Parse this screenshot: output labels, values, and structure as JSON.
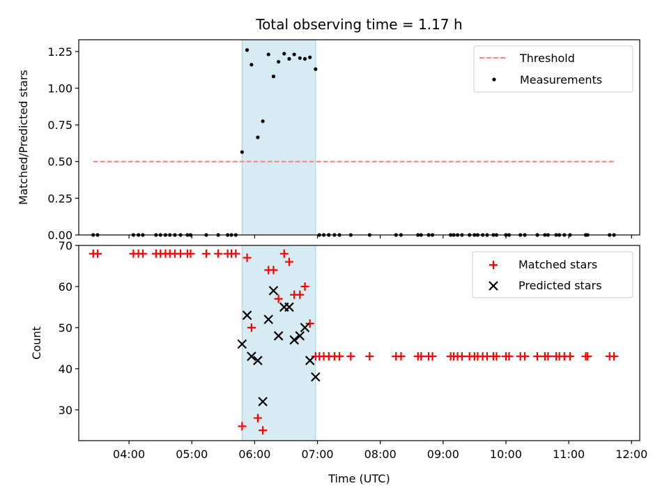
{
  "chart_data": {
    "title": "Total observing time = 1.17 h",
    "type": "scatter",
    "x_unit": "UTC hours",
    "highlight_span": [
      5.8,
      6.97
    ],
    "x_ticks": [
      4,
      5,
      6,
      7,
      8,
      9,
      10,
      11,
      12
    ],
    "x_tick_labels": [
      "04:00",
      "05:00",
      "06:00",
      "07:00",
      "08:00",
      "09:00",
      "10:00",
      "11:00",
      "12:00"
    ],
    "xlabel": "Time (UTC)",
    "xlim": [
      3.2,
      12.13
    ],
    "panels": [
      {
        "ylabel": "Matched/Predicted stars",
        "ylim": [
          0,
          1.33
        ],
        "y_ticks": [
          0,
          0.25,
          0.5,
          0.75,
          1.0,
          1.25
        ],
        "y_tick_labels": [
          "0.00",
          "0.25",
          "0.50",
          "0.75",
          "1.00",
          "1.25"
        ],
        "legend": {
          "placement": "upper right",
          "entries": [
            "Threshold",
            "Measurements"
          ]
        },
        "threshold": {
          "name": "Threshold",
          "y": 0.5,
          "x_range": [
            3.43,
            11.73
          ],
          "color": "#ff7f7f"
        },
        "measurements": {
          "name": "Measurements",
          "color": "#000000",
          "x": [
            3.43,
            3.5,
            4.07,
            4.15,
            4.22,
            4.43,
            4.5,
            4.58,
            4.65,
            4.73,
            4.82,
            4.93,
            4.98,
            5.23,
            5.42,
            5.57,
            5.63,
            5.7,
            5.8,
            5.88,
            5.95,
            6.05,
            6.13,
            6.22,
            6.3,
            6.38,
            6.47,
            6.55,
            6.63,
            6.72,
            6.8,
            6.88,
            6.97,
            7.03,
            7.1,
            7.18,
            7.27,
            7.35,
            7.53,
            7.83,
            8.25,
            8.33,
            8.6,
            8.65,
            8.77,
            8.83,
            9.12,
            9.17,
            9.23,
            9.3,
            9.42,
            9.5,
            9.55,
            9.63,
            9.7,
            9.8,
            9.85,
            10.0,
            10.05,
            10.23,
            10.3,
            10.5,
            10.62,
            10.67,
            10.8,
            10.85,
            10.93,
            11.02,
            11.27,
            11.3,
            11.65,
            11.72
          ],
          "y": [
            0,
            0,
            0,
            0,
            0,
            0,
            0,
            0,
            0,
            0,
            0,
            0,
            0,
            0,
            0,
            0,
            0,
            0,
            0.565,
            1.26,
            1.16,
            0.665,
            0.775,
            1.23,
            1.08,
            1.18,
            1.235,
            1.2,
            1.23,
            1.205,
            1.2,
            1.21,
            1.13,
            0,
            0,
            0,
            0,
            0,
            0,
            0,
            0,
            0,
            0,
            0,
            0,
            0,
            0,
            0,
            0,
            0,
            0,
            0,
            0,
            0,
            0,
            0,
            0,
            0,
            0,
            0,
            0,
            0,
            0,
            0,
            0,
            0,
            0,
            0,
            0,
            0,
            0,
            0
          ]
        }
      },
      {
        "ylabel": "Count",
        "ylim": [
          22.5,
          70
        ],
        "y_ticks": [
          30,
          40,
          50,
          60,
          70
        ],
        "y_tick_labels": [
          "30",
          "40",
          "50",
          "60",
          "70"
        ],
        "legend": {
          "placement": "upper right",
          "entries": [
            "Matched stars",
            "Predicted stars"
          ]
        },
        "matched": {
          "name": "Matched stars",
          "color": "#ff0000",
          "x": [
            3.43,
            3.5,
            4.07,
            4.15,
            4.22,
            4.43,
            4.5,
            4.58,
            4.65,
            4.73,
            4.82,
            4.93,
            4.98,
            5.23,
            5.42,
            5.57,
            5.63,
            5.7,
            5.8,
            5.88,
            5.95,
            6.05,
            6.13,
            6.22,
            6.3,
            6.38,
            6.47,
            6.55,
            6.63,
            6.72,
            6.8,
            6.88,
            6.97,
            7.03,
            7.1,
            7.18,
            7.27,
            7.35,
            7.53,
            7.83,
            8.25,
            8.33,
            8.6,
            8.65,
            8.77,
            8.83,
            9.12,
            9.17,
            9.23,
            9.3,
            9.42,
            9.5,
            9.55,
            9.63,
            9.7,
            9.8,
            9.85,
            10.0,
            10.05,
            10.23,
            10.3,
            10.5,
            10.62,
            10.67,
            10.8,
            10.85,
            10.93,
            11.02,
            11.27,
            11.3,
            11.65,
            11.72
          ],
          "y": [
            68,
            68,
            68,
            68,
            68,
            68,
            68,
            68,
            68,
            68,
            68,
            68,
            68,
            68,
            68,
            68,
            68,
            68,
            26,
            67,
            50,
            28,
            25,
            64,
            64,
            57,
            68,
            66,
            58,
            58,
            60,
            51,
            43,
            43,
            43,
            43,
            43,
            43,
            43,
            43,
            43,
            43,
            43,
            43,
            43,
            43,
            43,
            43,
            43,
            43,
            43,
            43,
            43,
            43,
            43,
            43,
            43,
            43,
            43,
            43,
            43,
            43,
            43,
            43,
            43,
            43,
            43,
            43,
            43,
            43,
            43,
            43
          ]
        },
        "predicted": {
          "name": "Predicted stars",
          "color": "#000000",
          "x": [
            5.8,
            5.88,
            5.95,
            6.05,
            6.13,
            6.22,
            6.3,
            6.38,
            6.47,
            6.55,
            6.63,
            6.72,
            6.8,
            6.88,
            6.97
          ],
          "y": [
            46,
            53,
            43,
            42,
            32,
            52,
            59,
            48,
            55,
            55,
            47,
            48,
            50,
            42,
            38
          ]
        }
      }
    ]
  }
}
